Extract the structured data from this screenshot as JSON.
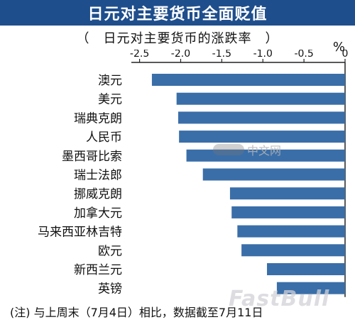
{
  "title": "日元对主要货币全面贬值",
  "subtitle": "（　日元对主要货币的涨跌率　）",
  "unit": "%",
  "footnote": "(注) 与上周末（7月4日）相比，数据截至7月11日",
  "watermark_text": "中文网",
  "brand_watermark": "FastBull",
  "colors": {
    "title_bg": "#1f4e8c",
    "bar": "#3a6ea8"
  },
  "chart_data": {
    "type": "bar",
    "orientation": "horizontal",
    "categories": [
      "澳元",
      "美元",
      "瑞典克朗",
      "人民币",
      "墨西哥比索",
      "瑞士法郎",
      "挪威克朗",
      "加拿大元",
      "马来西亚林吉特",
      "欧元",
      "新西兰元",
      "英镑"
    ],
    "values": [
      -2.35,
      -2.05,
      -2.03,
      -2.02,
      -1.93,
      -1.73,
      -1.4,
      -1.38,
      -1.31,
      -1.26,
      -0.95,
      -0.83
    ],
    "xlim": [
      -2.6,
      0
    ],
    "xticks": [
      -2.5,
      -2.0,
      -1.5,
      -1.0,
      -0.5,
      0
    ],
    "xtick_labels": [
      "-2.5",
      "-2.0",
      "-1.5",
      "-1.0",
      "-0.5",
      "0"
    ],
    "axis_position": "top",
    "grid": false
  }
}
